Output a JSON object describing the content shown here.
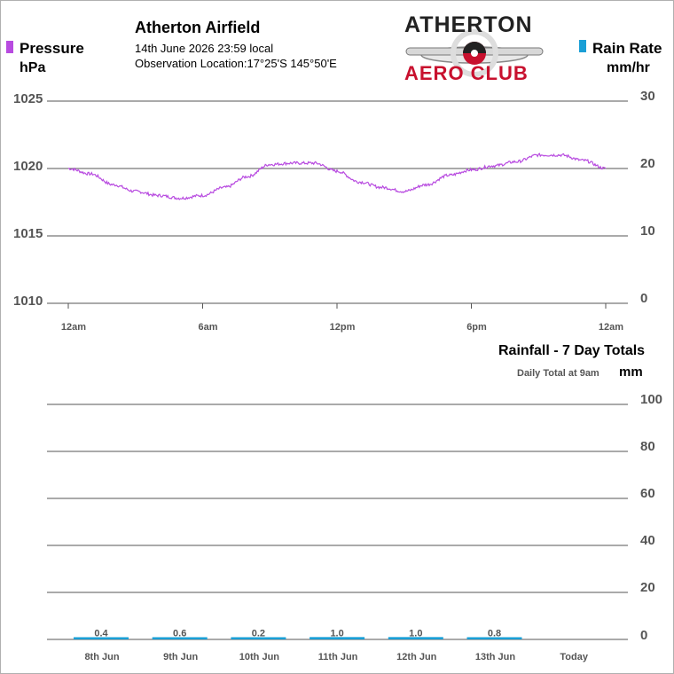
{
  "header": {
    "station_name": "Atherton Airfield",
    "date_time": "14th June 2026  23:59 local",
    "location": "Observation Location:17°25'S 145°50'E",
    "logo_line1": "ATHERTON",
    "logo_line2": "AERO CLUB"
  },
  "legend": {
    "left_series": "Pressure",
    "left_unit": "hPa",
    "right_series": "Rain Rate",
    "right_unit": "mm/hr",
    "pressure_color": "#b84be0",
    "rain_color": "#1a9fd6"
  },
  "top_chart_labels": {
    "left_ticks": [
      "1025",
      "1020",
      "1015",
      "1010"
    ],
    "right_ticks": [
      "30",
      "20",
      "10",
      "0"
    ],
    "x_ticks": [
      "12am",
      "6am",
      "12pm",
      "6pm",
      "12am"
    ]
  },
  "bottom_chart_labels": {
    "title": "Rainfall - 7 Day Totals",
    "subtitle": "Daily Total at 9am",
    "unit": "mm"
  },
  "chart_data": [
    {
      "type": "line",
      "ylabel_left": "hPa",
      "ylabel_right": "mm/hr",
      "ylim_left": [
        1010,
        1025
      ],
      "ylim_right": [
        0,
        30
      ],
      "grid": true,
      "x_ticks": [
        "12am",
        "6am",
        "12pm",
        "6pm",
        "12am"
      ],
      "series": [
        {
          "name": "Pressure",
          "color": "#b84be0",
          "x_hours": [
            0,
            1,
            2,
            3,
            4,
            5,
            6,
            7,
            8,
            9,
            10,
            11,
            12,
            13,
            14,
            15,
            16,
            17,
            18,
            19,
            20,
            21,
            22,
            23,
            24
          ],
          "values": [
            1020.0,
            1019.6,
            1018.8,
            1018.3,
            1018.0,
            1017.8,
            1018.0,
            1018.6,
            1019.4,
            1020.3,
            1020.4,
            1020.4,
            1019.8,
            1019.0,
            1018.6,
            1018.3,
            1018.8,
            1019.5,
            1019.9,
            1020.2,
            1020.5,
            1021.0,
            1021.0,
            1020.6,
            1020.0
          ]
        },
        {
          "name": "Rain Rate",
          "color": "#1a9fd6",
          "x_hours": [
            0,
            24
          ],
          "values": [
            0,
            0
          ]
        }
      ]
    },
    {
      "type": "bar",
      "title": "Rainfall - 7 Day Totals",
      "subtitle": "Daily Total at 9am",
      "ylabel": "mm",
      "ylim": [
        0,
        100
      ],
      "y_ticks": [
        "100",
        "80",
        "60",
        "40",
        "20",
        "0"
      ],
      "grid": true,
      "color": "#1a9fd6",
      "categories": [
        "8th Jun",
        "9th Jun",
        "10th Jun",
        "11th Jun",
        "12th Jun",
        "13th Jun",
        "Today"
      ],
      "values": [
        0.4,
        0.6,
        0.2,
        1.0,
        1.0,
        0.8,
        null
      ],
      "value_labels": [
        "0.4",
        "0.6",
        "0.2",
        "1.0",
        "1.0",
        "0.8",
        ""
      ]
    }
  ]
}
